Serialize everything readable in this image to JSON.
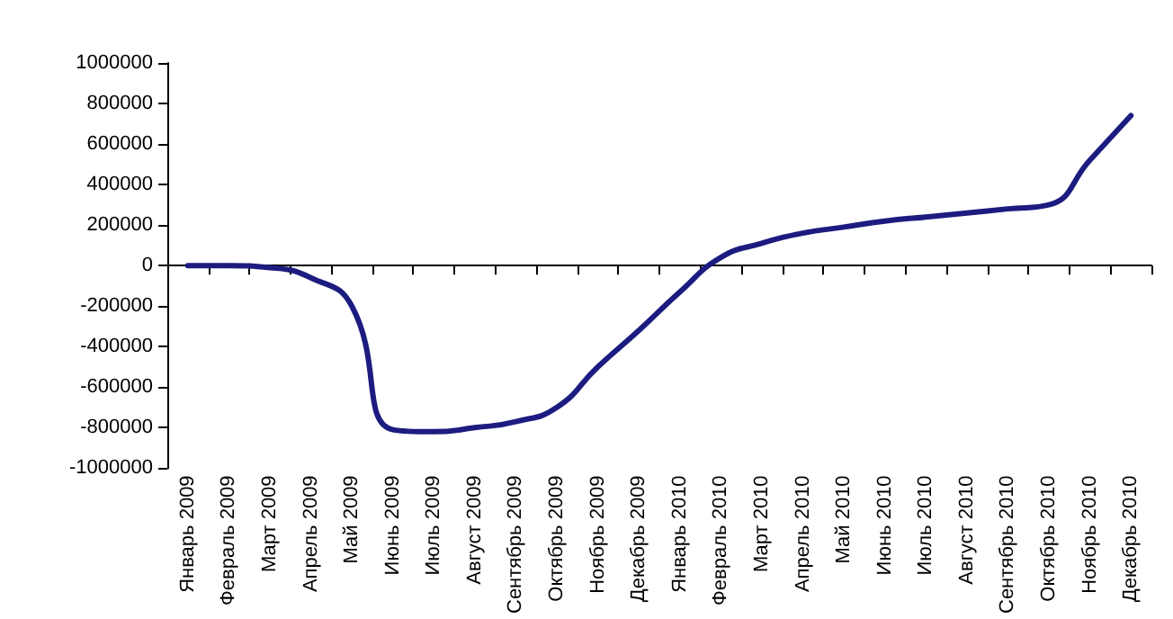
{
  "chart_data": {
    "type": "line",
    "categories": [
      "Январь 2009",
      "Февраль 2009",
      "Март 2009",
      "Апрель 2009",
      "Май 2009",
      "Июнь 2009",
      "Июль 2009",
      "Август 2009",
      "Сентябрь 2009",
      "Октябрь 2009",
      "Ноябрь 2009",
      "Декабрь 2009",
      "Январь 2010",
      "Февраль 2010",
      "Март 2010",
      "Апрель 2010",
      "Май 2010",
      "Июнь 2010",
      "Июль 2010",
      "Август 2010",
      "Сентябрь 2010",
      "Октябрь 2010",
      "Ноябрь 2010",
      "Декабрь 2010"
    ],
    "series": [
      {
        "color": "#1c1c80",
        "values": [
          0,
          0,
          -10000,
          -60000,
          -200000,
          -810000,
          -820000,
          -800000,
          -770000,
          -700000,
          -500000,
          -320000,
          -130000,
          40000,
          110000,
          160000,
          190000,
          220000,
          240000,
          260000,
          280000,
          300000,
          520000,
          740000
        ]
      }
    ],
    "ylim": [
      -1000000,
      1000000
    ],
    "yticks": [
      -1000000,
      -800000,
      -600000,
      -400000,
      -200000,
      0,
      200000,
      400000,
      600000,
      800000,
      1000000
    ],
    "marker": "none",
    "line_style": "solid"
  }
}
